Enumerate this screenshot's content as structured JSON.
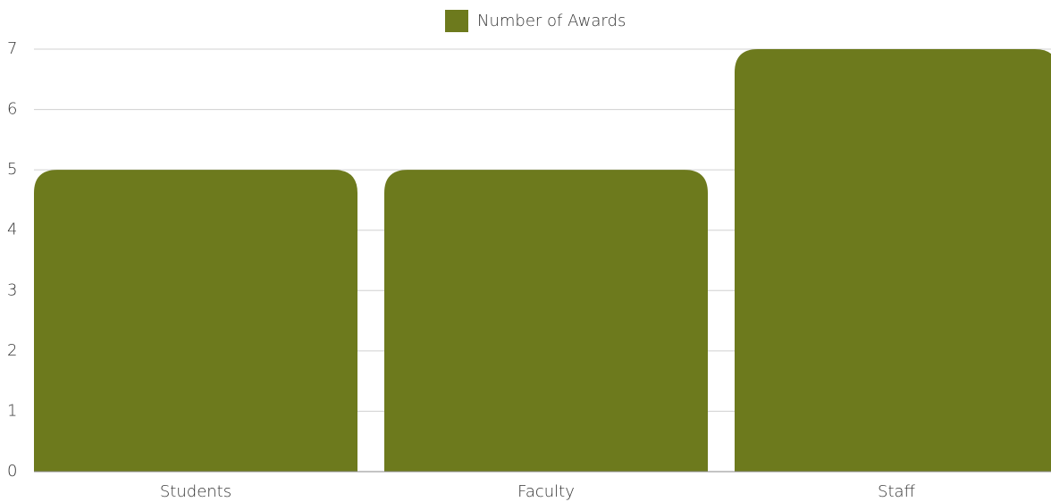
{
  "chart_data": {
    "type": "bar",
    "categories": [
      "Students",
      "Faculty",
      "Staff"
    ],
    "series": [
      {
        "name": "Number of Awards",
        "color": "#6d7a1d",
        "values": [
          5,
          5,
          7
        ]
      }
    ],
    "ylim": [
      0,
      7
    ],
    "yticks": [
      0,
      1,
      2,
      3,
      4,
      5,
      6,
      7
    ],
    "grid": true,
    "legend": "top"
  }
}
